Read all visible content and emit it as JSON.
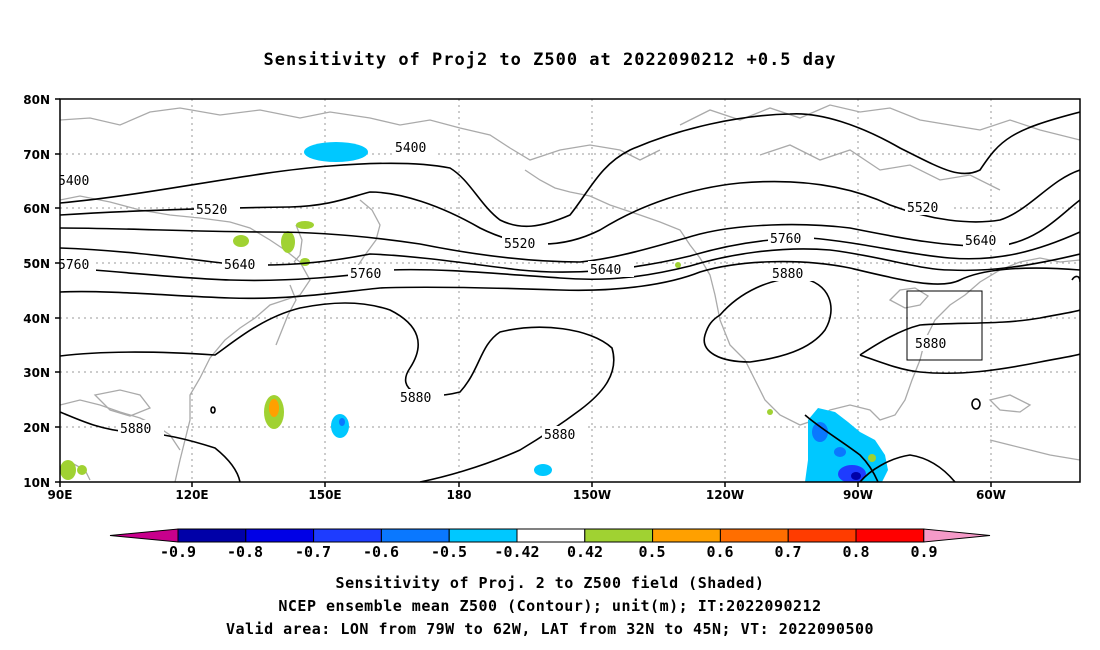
{
  "title": "Sensitivity of Proj2 to Z500 at 2022090212 +0.5 day",
  "captions": [
    "Sensitivity of Proj. 2 to Z500 field (Shaded)",
    "NCEP ensemble mean Z500 (Contour); unit(m); IT:2022090212",
    "Valid area: LON from 79W to 62W, LAT from 32N to 45N; VT: 2022090500"
  ],
  "axes": {
    "lat_labels": [
      "80N",
      "70N",
      "60N",
      "50N",
      "40N",
      "30N",
      "20N",
      "10N"
    ],
    "lon_labels": [
      "90E",
      "120E",
      "150E",
      "180",
      "150W",
      "120W",
      "90W",
      "60W"
    ]
  },
  "colorbar": {
    "labels": [
      "-0.9",
      "-0.8",
      "-0.7",
      "-0.6",
      "-0.5",
      "-0.42",
      "0.42",
      "0.5",
      "0.6",
      "0.7",
      "0.8",
      "0.9"
    ],
    "colors": [
      "#0000a8",
      "#0000e6",
      "#1e3cff",
      "#0a78ff",
      "#00c8ff",
      "#ffffff",
      "#a0d232",
      "#ffa000",
      "#ff6e00",
      "#ff3c00",
      "#ff0000"
    ],
    "low_end_color": "#c8008c",
    "high_end_color": "#f59ac8"
  },
  "contour_labels": [
    "5400",
    "5400",
    "5520",
    "5520",
    "5520",
    "5640",
    "5640",
    "5640",
    "5760",
    "5760",
    "5760",
    "5880",
    "5880",
    "5880",
    "5880",
    "5880"
  ],
  "valid_area": {
    "lon": [
      "79W",
      "62W"
    ],
    "lat": [
      "32N",
      "45N"
    ]
  }
}
